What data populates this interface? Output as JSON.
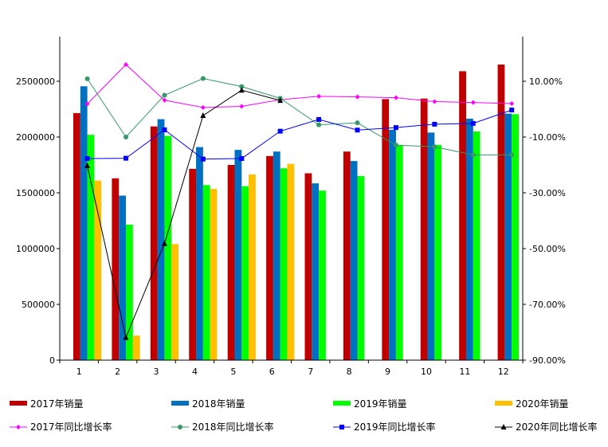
{
  "chart_data": {
    "type": "bar",
    "categories": [
      "1",
      "2",
      "3",
      "4",
      "5",
      "6",
      "7",
      "8",
      "9",
      "10",
      "11",
      "12"
    ],
    "bar_series": [
      {
        "name": "2017年销量",
        "color": "#c00000",
        "values": [
          2215000,
          1630000,
          2095000,
          1715000,
          1750000,
          1830000,
          1675000,
          1870000,
          2340000,
          2345000,
          2590000,
          2650000
        ]
      },
      {
        "name": "2018年销量",
        "color": "#0070c0",
        "values": [
          2455000,
          1475000,
          2160000,
          1910000,
          1885000,
          1870000,
          1585000,
          1785000,
          2065000,
          2040000,
          2165000,
          2210000
        ]
      },
      {
        "name": "2019年销量",
        "color": "#00ff00",
        "values": [
          2020000,
          1215000,
          2010000,
          1570000,
          1560000,
          1720000,
          1520000,
          1650000,
          1925000,
          1930000,
          2050000,
          2205000
        ]
      },
      {
        "name": "2020年销量",
        "color": "#ffc000",
        "values": [
          1610000,
          220000,
          1040000,
          1535000,
          1665000,
          1760000,
          null,
          null,
          null,
          null,
          null,
          null
        ]
      }
    ],
    "line_series": [
      {
        "name": "2017年同比增长率",
        "color": "#ff00ff",
        "marker": "diamond",
        "values": [
          0.019,
          0.16,
          0.032,
          0.006,
          0.01,
          0.034,
          0.046,
          0.044,
          0.041,
          0.027,
          0.024,
          0.02
        ]
      },
      {
        "name": "2018年同比增长率",
        "color": "#339966",
        "marker": "circle",
        "values": [
          0.109,
          -0.1,
          0.05,
          0.11,
          0.081,
          0.039,
          -0.056,
          -0.049,
          -0.129,
          -0.135,
          -0.164,
          -0.164
        ]
      },
      {
        "name": "2019年同比增长率",
        "color": "#0000ff",
        "marker": "square",
        "values": [
          -0.177,
          -0.176,
          -0.074,
          -0.179,
          -0.177,
          -0.079,
          -0.037,
          -0.075,
          -0.066,
          -0.054,
          -0.051,
          -0.003
        ]
      },
      {
        "name": "2020年同比增长率",
        "color": "#000000",
        "marker": "triangle",
        "values": [
          -0.203,
          -0.819,
          -0.482,
          -0.023,
          0.068,
          0.031,
          null,
          null,
          null,
          null,
          null,
          null
        ]
      }
    ],
    "y_left": {
      "min": 0,
      "max": 2900000,
      "ticks": [
        0,
        500000,
        1000000,
        1500000,
        2000000,
        2500000
      ]
    },
    "y_right": {
      "min": -0.9,
      "max": 0.26,
      "ticks": [
        -0.9,
        -0.7,
        -0.5,
        -0.3,
        -0.1,
        0.1
      ],
      "tick_labels": [
        "-90.00%",
        "-70.00%",
        "-50.00%",
        "-30.00%",
        "-10.00%",
        "10.00%"
      ]
    },
    "legend_placement": "bottom",
    "grid": false
  }
}
